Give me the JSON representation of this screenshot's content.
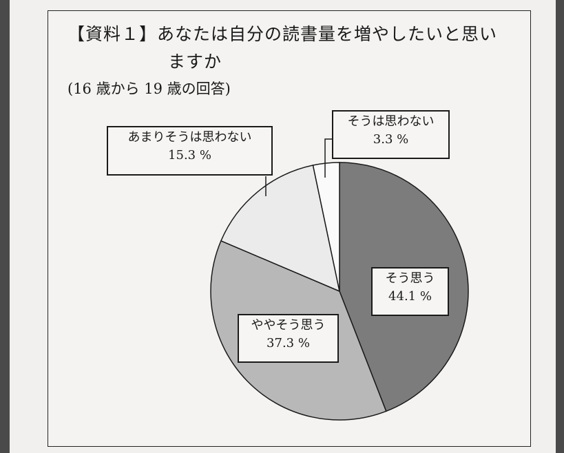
{
  "chart_data": {
    "type": "pie",
    "title_line1": "【資料１】あなたは自分の読書量を増やしたいと思い",
    "title_line2": "ますか",
    "subtitle": "(16 歳から 19 歳の回答)",
    "start_angle_deg": 0,
    "direction": "clockwise",
    "slices": [
      {
        "label": "そう思う",
        "value": 44.1,
        "value_text": "44.1 %",
        "color": "#7c7c7c"
      },
      {
        "label": "ややそう思う",
        "value": 37.3,
        "value_text": "37.3 %",
        "color": "#b8b8b8"
      },
      {
        "label": "あまりそうは思わない",
        "value": 15.3,
        "value_text": "15.3 %",
        "color": "#ebebeb"
      },
      {
        "label": "そうは思わない",
        "value": 3.3,
        "value_text": "3.3 %",
        "color": "#fafafa"
      }
    ]
  }
}
